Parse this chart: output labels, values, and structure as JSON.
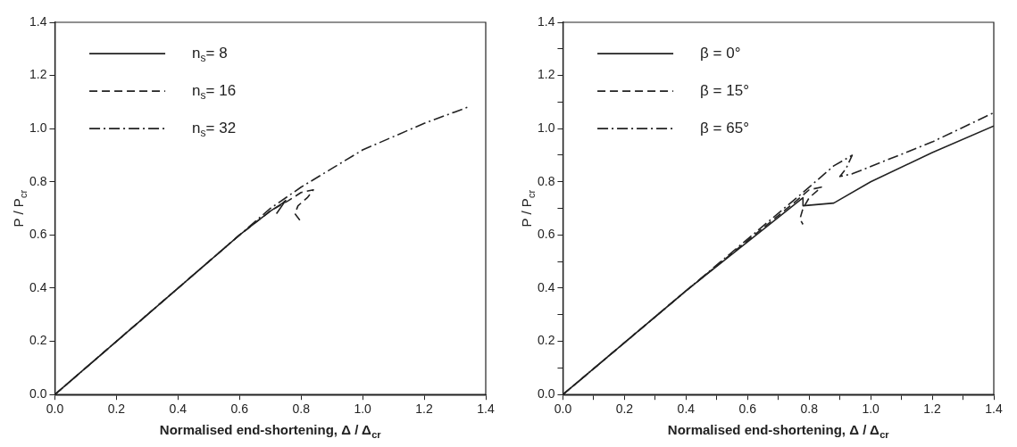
{
  "chart_data": [
    {
      "type": "line",
      "xlabel": "Normalised end-shortening, Δ / Δ$_{cr}$",
      "ylabel": "P / P$_{cr}$",
      "xlim": [
        0,
        1.4
      ],
      "ylim": [
        0,
        1.4
      ],
      "xticks": [
        {
          "value": 0,
          "label": "0.0"
        },
        0.2,
        0.4,
        0.6,
        0.8,
        {
          "value": 1,
          "label": "1.0"
        },
        1.2,
        1.4
      ],
      "yticks": [
        {
          "value": 0,
          "label": "0.0"
        },
        0.2,
        0.4,
        0.6,
        0.8,
        {
          "value": 1,
          "label": "1.0"
        },
        1.2,
        1.4
      ],
      "grid": false,
      "legend": "top left",
      "marker": "none",
      "series": [
        {
          "name": "n$_{s}$= 8",
          "color": "#222222",
          "line_style": "solid",
          "x": [
            0,
            0.3,
            0.6,
            0.7,
            0.74,
            0.75,
            0.72
          ],
          "values": [
            0,
            0.3,
            0.6,
            0.69,
            0.72,
            0.73,
            0.68
          ]
        },
        {
          "name": "n$_{s}$= 16",
          "color": "#222222",
          "line_style": "dashed",
          "x": [
            0,
            0.3,
            0.6,
            0.7,
            0.76,
            0.8,
            0.84,
            0.82,
            0.79,
            0.78,
            0.8
          ],
          "values": [
            0,
            0.3,
            0.6,
            0.69,
            0.73,
            0.76,
            0.77,
            0.74,
            0.71,
            0.68,
            0.65
          ]
        },
        {
          "name": "n$_{s}$= 32",
          "color": "#222222",
          "line_style": "dashdot",
          "x": [
            0,
            0.3,
            0.6,
            0.7,
            0.8,
            0.9,
            1.0,
            1.1,
            1.2,
            1.34
          ],
          "values": [
            0,
            0.3,
            0.6,
            0.7,
            0.78,
            0.85,
            0.92,
            0.97,
            1.02,
            1.08
          ]
        }
      ]
    },
    {
      "type": "line",
      "xlabel": "Normalised end-shortening, Δ / Δ$_{cr}$",
      "ylabel": "P / P$_{cr}$",
      "xlim": [
        0,
        1.4
      ],
      "ylim": [
        0,
        1.4
      ],
      "xticks": [
        {
          "value": 0,
          "label": "0.0"
        },
        {
          "value": 0.1,
          "label": null
        },
        0.2,
        {
          "value": 0.3,
          "label": null
        },
        0.4,
        {
          "value": 0.5,
          "label": null
        },
        0.6,
        {
          "value": 0.7,
          "label": null
        },
        0.8,
        {
          "value": 0.9,
          "label": null
        },
        {
          "value": 1,
          "label": "1.0"
        },
        {
          "value": 1.1,
          "label": null
        },
        1.2,
        {
          "value": 1.3,
          "label": null
        },
        1.4
      ],
      "yticks": [
        {
          "value": 0,
          "label": "0.0"
        },
        {
          "value": 0.1,
          "label": null
        },
        0.2,
        {
          "value": 0.3,
          "label": null
        },
        0.4,
        {
          "value": 0.5,
          "label": null
        },
        0.6,
        {
          "value": 0.7,
          "label": null
        },
        0.8,
        {
          "value": 0.9,
          "label": null
        },
        {
          "value": 1,
          "label": "1.0"
        },
        {
          "value": 1.1,
          "label": null
        },
        1.2,
        {
          "value": 1.3,
          "label": null
        },
        1.4
      ],
      "grid": false,
      "legend": "top left",
      "marker": "none",
      "series": [
        {
          "name": "β = 0°",
          "color": "#222222",
          "line_style": "solid",
          "x": [
            0,
            0.4,
            0.78,
            0.78,
            0.88,
            1.0,
            1.2,
            1.4
          ],
          "values": [
            0,
            0.39,
            0.74,
            0.71,
            0.72,
            0.8,
            0.91,
            1.01
          ]
        },
        {
          "name": "β = 15°",
          "color": "#222222",
          "line_style": "dashed",
          "x": [
            0,
            0.4,
            0.76,
            0.8,
            0.84,
            0.8,
            0.78,
            0.77,
            0.78
          ],
          "values": [
            0,
            0.39,
            0.73,
            0.77,
            0.78,
            0.74,
            0.7,
            0.66,
            0.64
          ]
        },
        {
          "name": "β = 65°",
          "color": "#222222",
          "line_style": "dashdot",
          "x": [
            0,
            0.4,
            0.78,
            0.88,
            0.94,
            0.92,
            0.9,
            0.94,
            1.2,
            1.4
          ],
          "values": [
            0,
            0.39,
            0.76,
            0.86,
            0.9,
            0.85,
            0.82,
            0.83,
            0.95,
            1.06
          ]
        }
      ]
    }
  ]
}
